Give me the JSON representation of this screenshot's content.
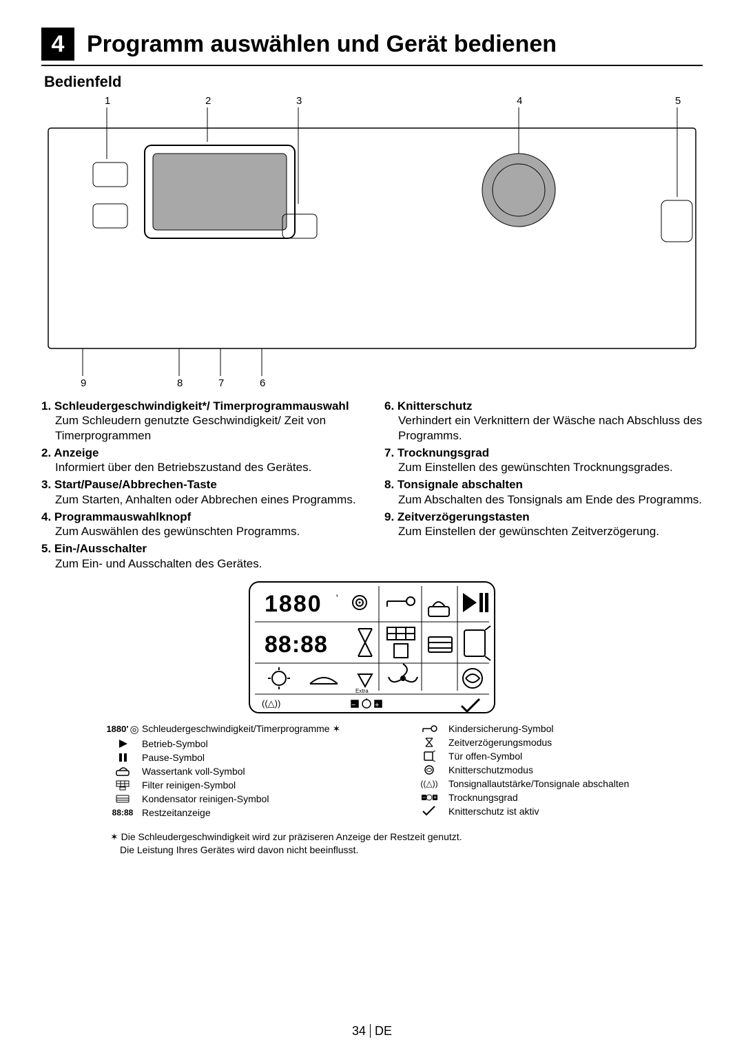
{
  "section": {
    "number": "4",
    "title": "Programm auswählen und Gerät bedienen",
    "subtitle": "Bedienfeld"
  },
  "callouts": {
    "top": [
      "1",
      "2",
      "3",
      "4",
      "5"
    ],
    "bottom": [
      "9",
      "8",
      "7",
      "6"
    ]
  },
  "items_left": [
    {
      "n": "1.",
      "hd": "Schleudergeschwindigkeit*/ Timerprogrammauswahl",
      "desc": "Zum Schleudern genutzte Geschwindigkeit/ Zeit von Timerprogrammen"
    },
    {
      "n": "2.",
      "hd": "Anzeige",
      "desc": "Informiert über den Betriebszustand des Gerätes."
    },
    {
      "n": "3.",
      "hd": "Start/Pause/Abbrechen-Taste",
      "desc": "Zum Starten, Anhalten oder Abbrechen eines Programms."
    },
    {
      "n": "4.",
      "hd": "Programmauswahlknopf",
      "desc": "Zum Auswählen des gewünschten Programms."
    },
    {
      "n": "5.",
      "hd": "Ein-/Ausschalter",
      "desc": "Zum Ein- und Ausschalten des Gerätes."
    }
  ],
  "items_right": [
    {
      "n": "6.",
      "hd": "Knitterschutz",
      "desc": "Verhindert ein Verknittern der Wäsche nach Abschluss des Programms."
    },
    {
      "n": "7.",
      "hd": "Trocknungsgrad",
      "desc": "Zum Einstellen des gewünschten Trocknungsgrades."
    },
    {
      "n": "8.",
      "hd": "Tonsignale abschalten",
      "desc": "Zum Abschalten des Tonsignals am Ende des Programms."
    },
    {
      "n": "9.",
      "hd": "Zeitverzögerungstasten",
      "desc": "Zum Einstellen der gewünschten Zeitverzögerung."
    }
  ],
  "legend_left": [
    {
      "icon": "spin",
      "label": "Schleudergeschwindigkeit/Timerprogramme  ✶"
    },
    {
      "icon": "play",
      "label": "Betrieb-Symbol"
    },
    {
      "icon": "pause",
      "label": "Pause-Symbol"
    },
    {
      "icon": "tank",
      "label": "Wassertank voll-Symbol"
    },
    {
      "icon": "filter",
      "label": "Filter reinigen-Symbol"
    },
    {
      "icon": "cond",
      "label": "Kondensator reinigen-Symbol"
    },
    {
      "icon": "time",
      "label": "Restzeitanzeige"
    }
  ],
  "legend_right": [
    {
      "icon": "lock",
      "label": "Kindersicherung-Symbol"
    },
    {
      "icon": "hour",
      "label": "Zeitverzögerungsmodus"
    },
    {
      "icon": "door",
      "label": "Tür offen-Symbol"
    },
    {
      "icon": "anti",
      "label": "Knitterschutzmodus"
    },
    {
      "icon": "mute",
      "label": "Tonsignallautstärke/Tonsignale abschalten"
    },
    {
      "icon": "dry",
      "label": "Trocknungsgrad"
    },
    {
      "icon": "check",
      "label": "Knitterschutz ist aktiv"
    }
  ],
  "footnote": {
    "mark": "✶",
    "l1": "Die Schleudergeschwindigkeit wird zur präziseren Anzeige der Restzeit genutzt.",
    "l2": "Die Leistung Ihres Gerätes wird davon nicht beeinflusst."
  },
  "page": {
    "num": "34",
    "lang": "DE"
  },
  "colors": {
    "ink": "#000",
    "accent_grey": "#a8a8a8"
  }
}
